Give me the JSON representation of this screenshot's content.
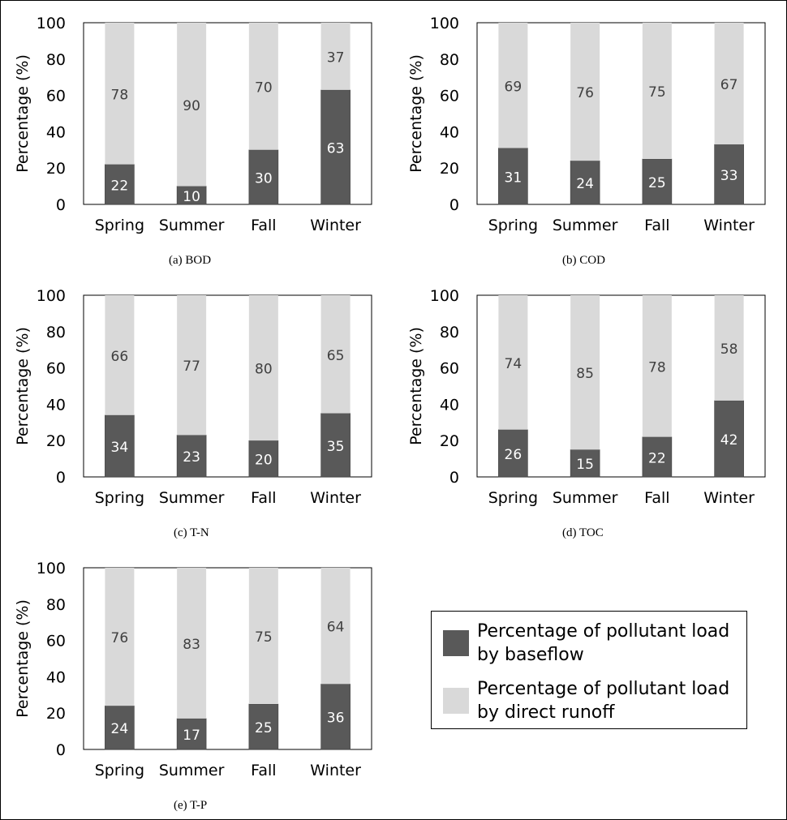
{
  "chart_data": [
    {
      "type": "bar",
      "stacked": true,
      "caption": "(a)  BOD",
      "ylabel": "Percentage  (%)",
      "ylim": [
        0,
        100
      ],
      "yticks": [
        0,
        20,
        40,
        60,
        80,
        100
      ],
      "categories": [
        "Spring",
        "Summer",
        "Fall",
        "Winter"
      ],
      "series": [
        {
          "name": "Percentage of pollutant load by baseflow",
          "values": [
            22,
            10,
            30,
            63
          ]
        },
        {
          "name": "Percentage of pollutant load by direct runoff",
          "values": [
            78,
            90,
            70,
            37
          ]
        }
      ]
    },
    {
      "type": "bar",
      "stacked": true,
      "caption": "(b)  COD",
      "ylabel": "Percentage  (%)",
      "ylim": [
        0,
        100
      ],
      "yticks": [
        0,
        20,
        40,
        60,
        80,
        100
      ],
      "categories": [
        "Spring",
        "Summer",
        "Fall",
        "Winter"
      ],
      "series": [
        {
          "name": "Percentage of pollutant load by baseflow",
          "values": [
            31,
            24,
            25,
            33
          ]
        },
        {
          "name": "Percentage of pollutant load by direct runoff",
          "values": [
            69,
            76,
            75,
            67
          ]
        }
      ]
    },
    {
      "type": "bar",
      "stacked": true,
      "caption": "(c)  T-N",
      "ylabel": "Percentage  (%)",
      "ylim": [
        0,
        100
      ],
      "yticks": [
        0,
        20,
        40,
        60,
        80,
        100
      ],
      "categories": [
        "Spring",
        "Summer",
        "Fall",
        "Winter"
      ],
      "series": [
        {
          "name": "Percentage of pollutant load by baseflow",
          "values": [
            34,
            23,
            20,
            35
          ]
        },
        {
          "name": "Percentage of pollutant load by direct runoff",
          "values": [
            66,
            77,
            80,
            65
          ]
        }
      ]
    },
    {
      "type": "bar",
      "stacked": true,
      "caption": "(d)  TOC",
      "ylabel": "Percentage  (%)",
      "ylim": [
        0,
        100
      ],
      "yticks": [
        0,
        20,
        40,
        60,
        80,
        100
      ],
      "categories": [
        "Spring",
        "Summer",
        "Fall",
        "Winter"
      ],
      "series": [
        {
          "name": "Percentage of pollutant load by baseflow",
          "values": [
            26,
            15,
            22,
            42
          ]
        },
        {
          "name": "Percentage of pollutant load by direct runoff",
          "values": [
            74,
            85,
            78,
            58
          ]
        }
      ]
    },
    {
      "type": "bar",
      "stacked": true,
      "caption": "(e)  T-P",
      "ylabel": "Percentage  (%)",
      "ylim": [
        0,
        100
      ],
      "yticks": [
        0,
        20,
        40,
        60,
        80,
        100
      ],
      "categories": [
        "Spring",
        "Summer",
        "Fall",
        "Winter"
      ],
      "series": [
        {
          "name": "Percentage of pollutant load by baseflow",
          "values": [
            24,
            17,
            25,
            36
          ]
        },
        {
          "name": "Percentage of pollutant load by direct runoff",
          "values": [
            76,
            83,
            75,
            64
          ]
        }
      ]
    }
  ],
  "legend": {
    "items": [
      {
        "label": "Percentage of pollutant load\nby baseflow",
        "color": "#595959"
      },
      {
        "label": "Percentage of pollutant load\nby direct runoff",
        "color": "#d9d9d9"
      }
    ]
  },
  "colors": {
    "baseflow": "#595959",
    "direct_runoff": "#d9d9d9",
    "baseflow_label": "#ffffff",
    "runoff_label": "#404040",
    "axis": "#000000",
    "gridline": "#d9d9d9"
  }
}
